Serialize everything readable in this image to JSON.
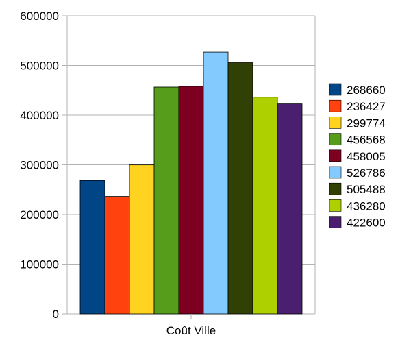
{
  "chart_data": {
    "type": "bar",
    "categories": [
      "Coût Ville"
    ],
    "series": [
      {
        "name": "268660",
        "values": [
          268660
        ],
        "color": "#004586"
      },
      {
        "name": "236427",
        "values": [
          236427
        ],
        "color": "#ff420e"
      },
      {
        "name": "299774",
        "values": [
          299774
        ],
        "color": "#ffd320"
      },
      {
        "name": "456568",
        "values": [
          456568
        ],
        "color": "#579d1c"
      },
      {
        "name": "458005",
        "values": [
          458005
        ],
        "color": "#7e0021"
      },
      {
        "name": "526786",
        "values": [
          526786
        ],
        "color": "#83caff"
      },
      {
        "name": "505488",
        "values": [
          505488
        ],
        "color": "#314004"
      },
      {
        "name": "436280",
        "values": [
          436280
        ],
        "color": "#aecf00"
      },
      {
        "name": "422600",
        "values": [
          422600
        ],
        "color": "#4b1f6f"
      }
    ],
    "ylim": [
      0,
      600000
    ],
    "yticks": [
      0,
      100000,
      200000,
      300000,
      400000,
      500000,
      600000
    ],
    "grid": true,
    "legend": "right"
  }
}
